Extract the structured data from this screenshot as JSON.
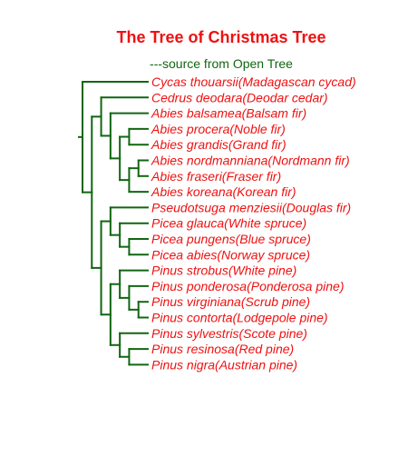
{
  "title": "The Tree of Christmas Tree",
  "subtitle": "---source from Open Tree",
  "colors": {
    "title": "#ee1111",
    "subtitle": "#116611",
    "branch": "#116611",
    "label": "#ee1111"
  },
  "tips": [
    "Cycas thouarsii(Madagascan cycad)",
    "Cedrus deodara(Deodar cedar)",
    "Abies balsamea(Balsam fir)",
    "Abies procera(Noble fir)",
    "Abies grandis(Grand fir)",
    "Abies nordmanniana(Nordmann fir)",
    "Abies fraseri(Fraser fir)",
    "Abies koreana(Korean fir)",
    "Pseudotsuga menziesii(Douglas fir)",
    "Picea glauca(White spruce)",
    "Picea pungens(Blue spruce)",
    "Picea abies(Norway spruce)",
    "Pinus strobus(White pine)",
    "Pinus ponderosa(Ponderosa pine)",
    "Pinus virginiana(Scrub pine)",
    "Pinus contorta(Lodgepole pine)",
    "Pinus sylvestris(Scote pine)",
    "Pinus resinosa(Red pine)",
    "Pinus nigra(Austrian pine)"
  ],
  "tree": {
    "children": [
      {
        "tip": 0
      },
      {
        "children": [
          {
            "children": [
              {
                "tip": 1
              },
              {
                "children": [
                  {
                    "tip": 2
                  },
                  {
                    "children": [
                      {
                        "children": [
                          {
                            "tip": 3
                          },
                          {
                            "tip": 4
                          }
                        ]
                      },
                      {
                        "children": [
                          {
                            "children": [
                              {
                                "tip": 5
                              },
                              {
                                "tip": 6
                              }
                            ]
                          },
                          {
                            "tip": 7
                          }
                        ]
                      }
                    ]
                  }
                ]
              }
            ]
          },
          {
            "children": [
              {
                "children": [
                  {
                    "tip": 8
                  },
                  {
                    "children": [
                      {
                        "tip": 9
                      },
                      {
                        "children": [
                          {
                            "tip": 10
                          },
                          {
                            "tip": 11
                          }
                        ]
                      }
                    ]
                  }
                ]
              },
              {
                "children": [
                  {
                    "children": [
                      {
                        "tip": 12
                      },
                      {
                        "children": [
                          {
                            "tip": 13
                          },
                          {
                            "children": [
                              {
                                "tip": 14
                              },
                              {
                                "tip": 15
                              }
                            ]
                          }
                        ]
                      }
                    ]
                  },
                  {
                    "children": [
                      {
                        "tip": 16
                      },
                      {
                        "children": [
                          {
                            "tip": 17
                          },
                          {
                            "tip": 18
                          }
                        ]
                      }
                    ]
                  }
                ]
              }
            ]
          }
        ]
      }
    ]
  }
}
